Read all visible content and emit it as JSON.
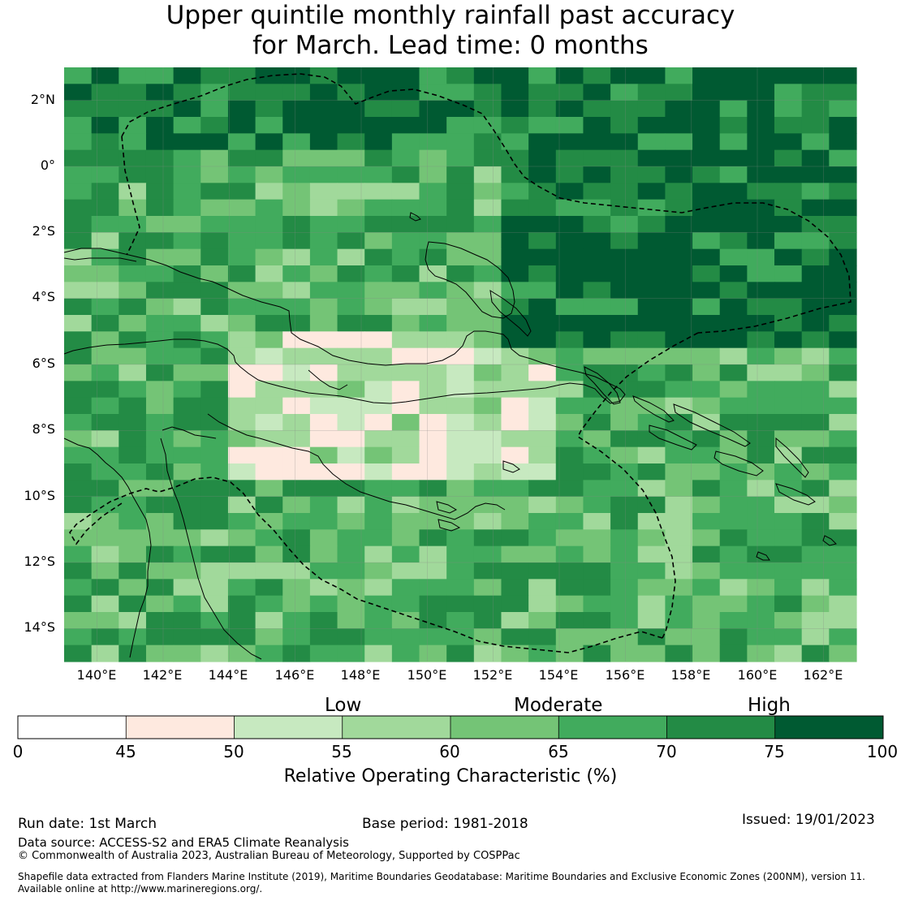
{
  "title": {
    "line1": "Upper quintile monthly rainfall past accuracy",
    "line2": "for March. Lead time: 0 months"
  },
  "map": {
    "lon_range": [
      139,
      163
    ],
    "lat_range": [
      -15,
      3
    ],
    "lat_ticks": [
      "2°N",
      "0°",
      "2°S",
      "4°S",
      "6°S",
      "8°S",
      "10°S",
      "12°S",
      "14°S"
    ],
    "lon_ticks": [
      "140°E",
      "142°E",
      "144°E",
      "146°E",
      "148°E",
      "150°E",
      "152°E",
      "154°E",
      "156°E",
      "158°E",
      "160°E",
      "162°E"
    ],
    "grid_resolution_deg": 0.8,
    "grid_rows": 36,
    "grid_cols": 29,
    "dominant_region_class": "high",
    "eez_boundary_style": "dashed"
  },
  "colorbar": {
    "categories": [
      "Low",
      "Moderate",
      "High"
    ],
    "ticks": [
      "0",
      "45",
      "50",
      "55",
      "60",
      "65",
      "70",
      "75",
      "100"
    ],
    "colors": [
      "#ffffff",
      "#fee9df",
      "#c7e9c0",
      "#a1d99b",
      "#74c476",
      "#41ab5d",
      "#238b45",
      "#005a32"
    ],
    "title": "Relative Operating Characteristic (%)"
  },
  "footer": {
    "run_date": "Run date: 1st March",
    "base_period": "Base period: 1981-2018",
    "issued": "Issued: 19/01/2023",
    "data_source": "Data source: ACCESS-S2 and ERA5 Climate Reanalysis",
    "copyright": "© Commonwealth of Australia 2023, Australian Bureau of Meteorology, Supported by COSPPac",
    "shapefile_1": "Shapefile data extracted from Flanders Marine Institute (2019), Maritime Boundaries Geodatabase: Maritime Boundaries and Exclusive Economic Zones (200NM), version 11.",
    "shapefile_2": "Available online at http://www.marineregions.org/."
  }
}
